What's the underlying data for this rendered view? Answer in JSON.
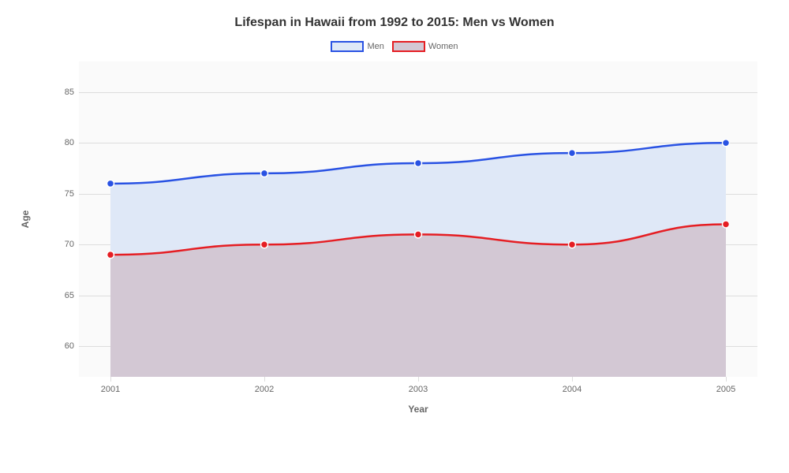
{
  "chart": {
    "type": "area-line",
    "title": "Lifespan in Hawaii from 1992 to 2015: Men vs Women",
    "title_fontsize": 16,
    "title_fontweight": 700,
    "title_color": "#333333",
    "background_color": "#ffffff",
    "plot_background_color": "#fafafa",
    "grid_color": "#dddddd",
    "axis_label_color": "#666666",
    "tick_fontsize": 11,
    "axis_title_fontsize": 12,
    "x_axis": {
      "title": "Year",
      "categories": [
        "2001",
        "2002",
        "2003",
        "2004",
        "2005"
      ]
    },
    "y_axis": {
      "title": "Age",
      "min": 57,
      "max": 88,
      "ticks": [
        60,
        65,
        70,
        75,
        80,
        85
      ]
    },
    "series": [
      {
        "name": "Men",
        "values": [
          76,
          77,
          78,
          79,
          80
        ],
        "line_color": "#2952e3",
        "fill_color": "#dfe8f7",
        "fill_opacity": 1,
        "marker_fill": "#2952e3",
        "marker_border": "#ffffff",
        "marker_radius": 4.5,
        "line_width": 2.5
      },
      {
        "name": "Women",
        "values": [
          69,
          70,
          71,
          70,
          72
        ],
        "line_color": "#e51e23",
        "fill_color": "#d3c8d4",
        "fill_opacity": 1,
        "marker_fill": "#e51e23",
        "marker_border": "#ffffff",
        "marker_radius": 4.5,
        "line_width": 2.5
      }
    ],
    "legend": {
      "position": "top-center",
      "items": [
        {
          "label": "Men",
          "border_color": "#2952e3",
          "fill_color": "#dfe8f7"
        },
        {
          "label": "Women",
          "border_color": "#e51e23",
          "fill_color": "#d3c8d4"
        }
      ]
    }
  }
}
